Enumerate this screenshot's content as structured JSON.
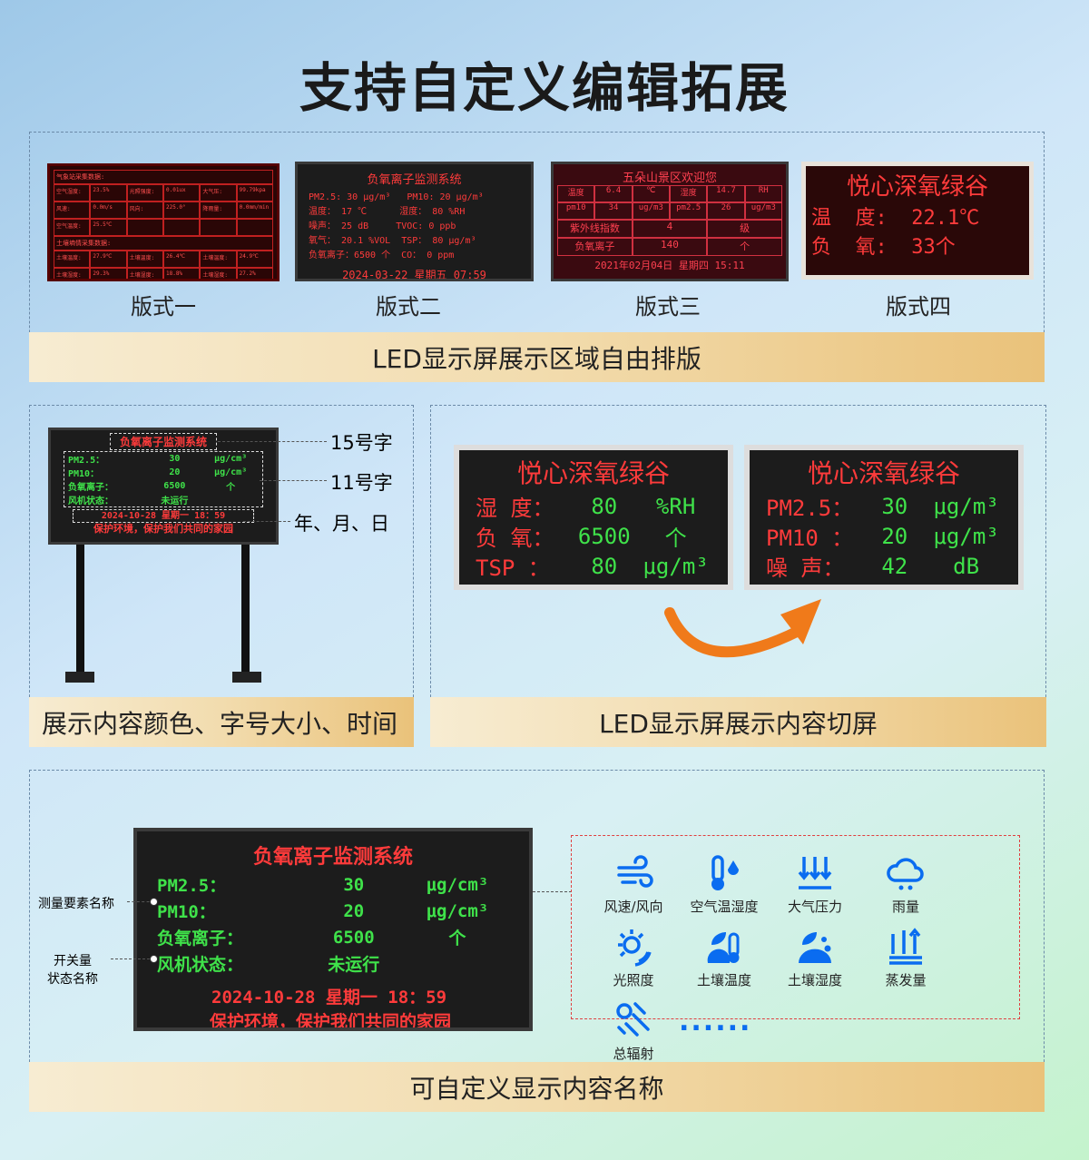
{
  "title": "支持自定义编辑拓展",
  "section1": {
    "band": "LED显示屏展示区域自由排版",
    "layouts": [
      {
        "caption": "版式一",
        "heading1": "气象站采集数据:",
        "cells1": [
          "空气湿度:",
          "23.5%",
          "光照强度:",
          "0.01ux",
          "大气压:",
          "99.79kpa",
          "风速:",
          "0.0m/s",
          "风向:",
          "225.0°",
          "降雨量:",
          "0.0mm/min",
          "空气温度:",
          "25.5℃",
          "",
          "",
          "",
          ""
        ],
        "heading2": "土壤墒情采集数据:",
        "cells2": [
          "土壤温度:",
          "27.9℃",
          "土壤温度:",
          "26.4℃",
          "土壤温度:",
          "24.9℃",
          "土壤湿度:",
          "29.3%",
          "土壤湿度:",
          "18.8%",
          "土壤湿度:",
          "27.2%"
        ]
      },
      {
        "caption": "版式二",
        "header": "负氧离子监测系统",
        "lines": [
          "PM2.5: 30 μg/m³   PM10: 20 μg/m³",
          "温度： 17 ℃      湿度： 80 %RH",
          "噪声： 25 dB     TVOC: 0 ppb",
          "氧气： 20.1 %VOL  TSP： 80 μg/m³",
          "负氧离子：6500 个  CO： 0 ppm"
        ],
        "footer": "2024-03-22 星期五 07:59"
      },
      {
        "caption": "版式三",
        "header": "五朵山景区欢迎您",
        "cells": [
          "温度",
          "6.4",
          "℃",
          "湿度",
          "14.7",
          "RH",
          "pm10",
          "34",
          "ug/m3",
          "pm2.5",
          "26",
          "ug/m3"
        ],
        "rows": [
          [
            "紫外线指数",
            "4",
            "级"
          ],
          [
            "负氧离子",
            "140",
            "个"
          ]
        ],
        "footer": "2021年02月04日 星期四 15:11"
      },
      {
        "caption": "版式四",
        "header": "悦心深氧绿谷",
        "lines": [
          "温  度:  22.1℃",
          "负  氧:  33个"
        ]
      }
    ]
  },
  "section2": {
    "left_band": "展示内容颜色、字号大小、时间",
    "right_band": "LED显示屏展示内容切屏",
    "labels": [
      "15号字",
      "11号字",
      "年、月、日"
    ],
    "sign": {
      "header": "负氧离子监测系统",
      "rows": [
        [
          "PM2.5：",
          "30",
          "μg/cm³"
        ],
        [
          "PM10：",
          "20",
          "μg/cm³"
        ],
        [
          "负氧离子：",
          "6500",
          "个"
        ],
        [
          "风机状态：",
          "未运行",
          ""
        ]
      ],
      "date": "2024-10-28  星期一  18：59",
      "slogan": "保护环境，保护我们共同的家园"
    },
    "screen_a": {
      "header": "悦心深氧绿谷",
      "rows": [
        [
          "湿  度：",
          "80",
          "%RH"
        ],
        [
          "负  氧：",
          "6500",
          "个"
        ],
        [
          "TSP  ：",
          "80",
          "μg/m³"
        ]
      ]
    },
    "screen_b": {
      "header": "悦心深氧绿谷",
      "rows": [
        [
          "PM2.5：",
          "30",
          "μg/m³"
        ],
        [
          "PM10 ：",
          "20",
          "μg/m³"
        ],
        [
          "噪  声：",
          "42",
          "dB"
        ]
      ]
    }
  },
  "section3": {
    "band": "可自定义显示内容名称",
    "label_measure": "测量要素名称",
    "label_switch": "开关量\n状态名称",
    "sign": {
      "header": "负氧离子监测系统",
      "rows": [
        [
          "PM2.5：",
          "30",
          "μg/cm³"
        ],
        [
          "PM10：",
          "20",
          "μg/cm³"
        ],
        [
          "负氧离子：",
          "6500",
          "个"
        ],
        [
          "风机状态：",
          "未运行",
          ""
        ]
      ],
      "date": "2024-10-28  星期一  18：59",
      "slogan": "保护环境，保护我们共同的家园"
    },
    "icons": [
      {
        "name": "wind-icon",
        "label": "风速/风向"
      },
      {
        "name": "thermometer-drop-icon",
        "label": "空气温湿度"
      },
      {
        "name": "pressure-icon",
        "label": "大气压力"
      },
      {
        "name": "rain-icon",
        "label": "雨量"
      },
      {
        "name": "sun-icon",
        "label": "光照度"
      },
      {
        "name": "soil-temperature-icon",
        "label": "土壤温度"
      },
      {
        "name": "soil-moisture-icon",
        "label": "土壤湿度"
      },
      {
        "name": "evaporation-icon",
        "label": "蒸发量"
      },
      {
        "name": "radiation-icon",
        "label": "总辐射"
      }
    ],
    "more": "......"
  },
  "colors": {
    "led_red": "#ff3b3b",
    "led_green": "#3fe24a",
    "icon_blue": "#0a6cf0",
    "arrow": "#f07a1a"
  }
}
